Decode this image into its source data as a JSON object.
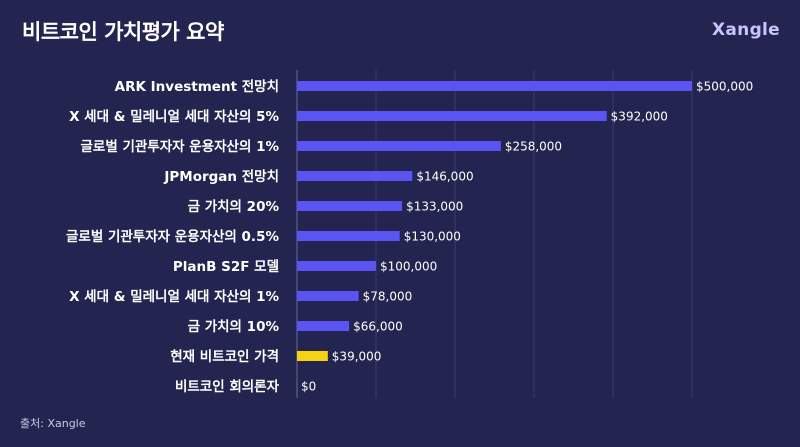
{
  "header": {
    "title": "비트코인 가치평가 요약",
    "brand": "Xangle"
  },
  "source": "출처: Xangle",
  "colors": {
    "background": "#23244f",
    "bar": "#5a55f2",
    "highlight": "#f5d313",
    "text": "#ffffff"
  },
  "chart_data": {
    "type": "bar",
    "orientation": "horizontal",
    "title": "비트코인 가치평가 요약",
    "xlim": [
      0,
      500000
    ],
    "grid": true,
    "categories": [
      "ARK Investment 전망치",
      "X 세대 & 밀레니얼 세대 자산의 5%",
      "글로벌 기관투자자 운용자산의 1%",
      "JPMorgan 전망치",
      "금 가치의 20%",
      "글로벌 기관투자자 운용자산의 0.5%",
      "PlanB S2F 모델",
      "X 세대 & 밀레니얼 세대 자산의 1%",
      "금 가치의 10%",
      "현재 비트코인 가격",
      "비트코인 회의론자"
    ],
    "values": [
      500000,
      392000,
      258000,
      146000,
      133000,
      130000,
      100000,
      78000,
      66000,
      39000,
      0
    ],
    "value_labels": [
      "$500,000",
      "$392,000",
      "$258,000",
      "$146,000",
      "$133,000",
      "$130,000",
      "$100,000",
      "$78,000",
      "$66,000",
      "$39,000",
      "$0"
    ],
    "highlight_index": 9
  }
}
